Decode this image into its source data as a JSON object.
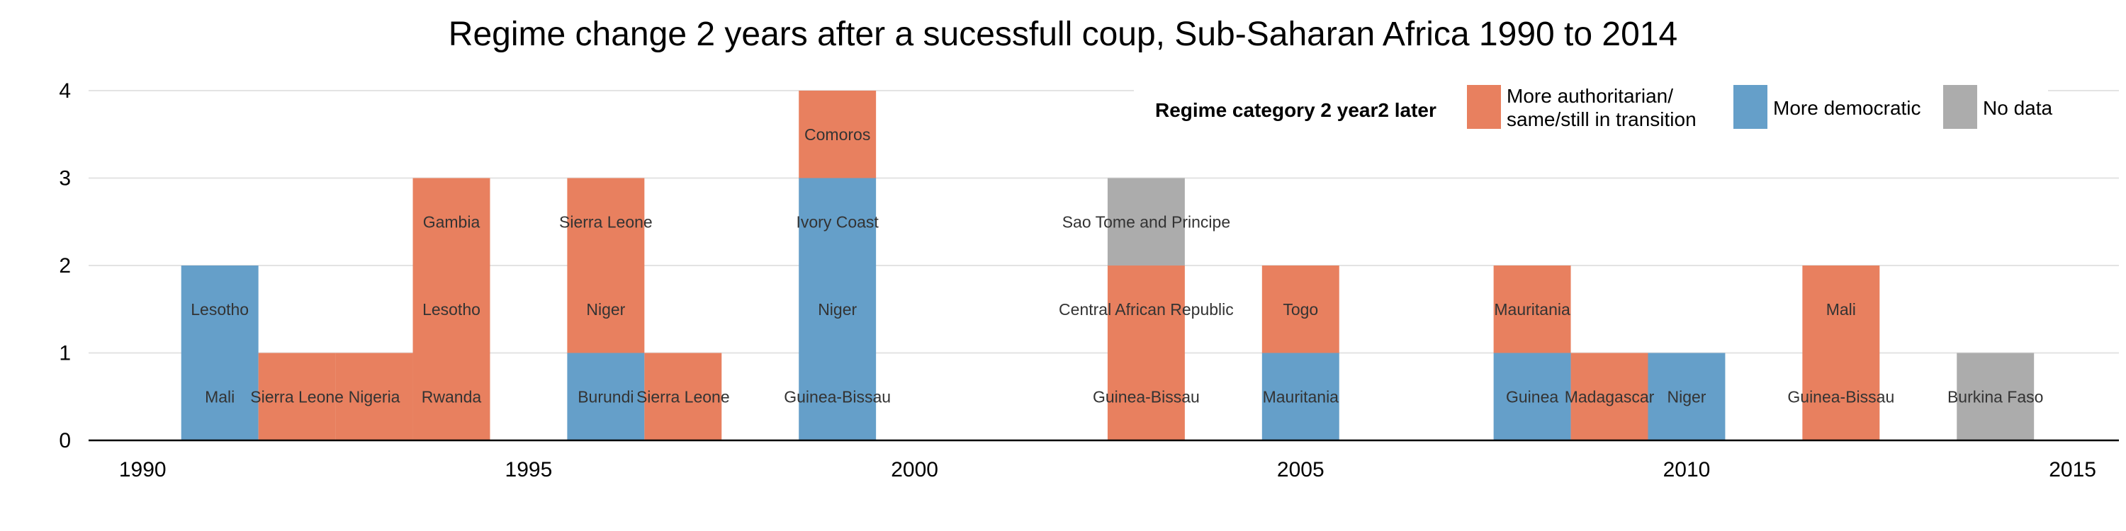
{
  "chart_data": {
    "type": "bar",
    "stacked": true,
    "title": "Regime change 2 years after a sucessfull coup, Sub-Saharan Africa 1990 to 2014",
    "xlabel": "",
    "ylabel": "",
    "xlim": [
      1989.3,
      2015.6
    ],
    "ylim": [
      0,
      4
    ],
    "x_ticks": [
      "1990",
      "1995",
      "2000",
      "2005",
      "2010",
      "2015"
    ],
    "y_ticks": [
      "0",
      "1",
      "2",
      "3",
      "4"
    ],
    "grid": "horizontal",
    "legend": {
      "title": "Regime category 2 year2 later",
      "placement": "top-right",
      "entries": [
        {
          "key": "authoritarian",
          "line1": "More authoritarian/",
          "line2": "same/still in transition",
          "color": "#E8805F"
        },
        {
          "key": "democratic",
          "line1": "More democratic",
          "line2": "",
          "color": "#659FC9"
        },
        {
          "key": "nodata",
          "line1": "No data",
          "line2": "",
          "color": "#ACACAC"
        }
      ]
    },
    "colors": {
      "authoritarian": "#E8805F",
      "democratic": "#659FC9",
      "nodata": "#ACACAC"
    },
    "points": [
      {
        "x": 1991,
        "stack": [
          {
            "country": "Mali",
            "category": "democratic"
          },
          {
            "country": "Lesotho",
            "category": "democratic"
          }
        ]
      },
      {
        "x": 1992,
        "stack": [
          {
            "country": "Sierra Leone",
            "category": "authoritarian"
          }
        ]
      },
      {
        "x": 1993,
        "stack": [
          {
            "country": "Nigeria",
            "category": "authoritarian"
          }
        ]
      },
      {
        "x": 1994,
        "stack": [
          {
            "country": "Rwanda",
            "category": "authoritarian"
          },
          {
            "country": "Lesotho",
            "category": "authoritarian"
          },
          {
            "country": "Gambia",
            "category": "authoritarian"
          }
        ]
      },
      {
        "x": 1996,
        "stack": [
          {
            "country": "Burundi",
            "category": "democratic"
          },
          {
            "country": "Niger",
            "category": "authoritarian"
          },
          {
            "country": "Sierra Leone",
            "category": "authoritarian"
          }
        ]
      },
      {
        "x": 1997,
        "stack": [
          {
            "country": "Sierra Leone",
            "category": "authoritarian"
          }
        ]
      },
      {
        "x": 1999,
        "stack": [
          {
            "country": "Guinea-Bissau",
            "category": "democratic"
          },
          {
            "country": "Niger",
            "category": "democratic"
          },
          {
            "country": "Ivory Coast",
            "category": "democratic"
          },
          {
            "country": "Comoros",
            "category": "authoritarian"
          }
        ]
      },
      {
        "x": 2003,
        "stack": [
          {
            "country": "Guinea-Bissau",
            "category": "authoritarian"
          },
          {
            "country": "Central African Republic",
            "category": "authoritarian"
          },
          {
            "country": "Sao Tome and Principe",
            "category": "nodata"
          }
        ]
      },
      {
        "x": 2005,
        "stack": [
          {
            "country": "Mauritania",
            "category": "democratic"
          },
          {
            "country": "Togo",
            "category": "authoritarian"
          }
        ]
      },
      {
        "x": 2008,
        "stack": [
          {
            "country": "Guinea",
            "category": "democratic"
          },
          {
            "country": "Mauritania",
            "category": "authoritarian"
          }
        ]
      },
      {
        "x": 2009,
        "stack": [
          {
            "country": "Madagascar",
            "category": "authoritarian"
          }
        ]
      },
      {
        "x": 2010,
        "stack": [
          {
            "country": "Niger",
            "category": "democratic"
          }
        ]
      },
      {
        "x": 2012,
        "stack": [
          {
            "country": "Guinea-Bissau",
            "category": "authoritarian"
          },
          {
            "country": "Mali",
            "category": "authoritarian"
          }
        ]
      },
      {
        "x": 2014,
        "stack": [
          {
            "country": "Burkina Faso",
            "category": "nodata"
          }
        ]
      }
    ]
  }
}
